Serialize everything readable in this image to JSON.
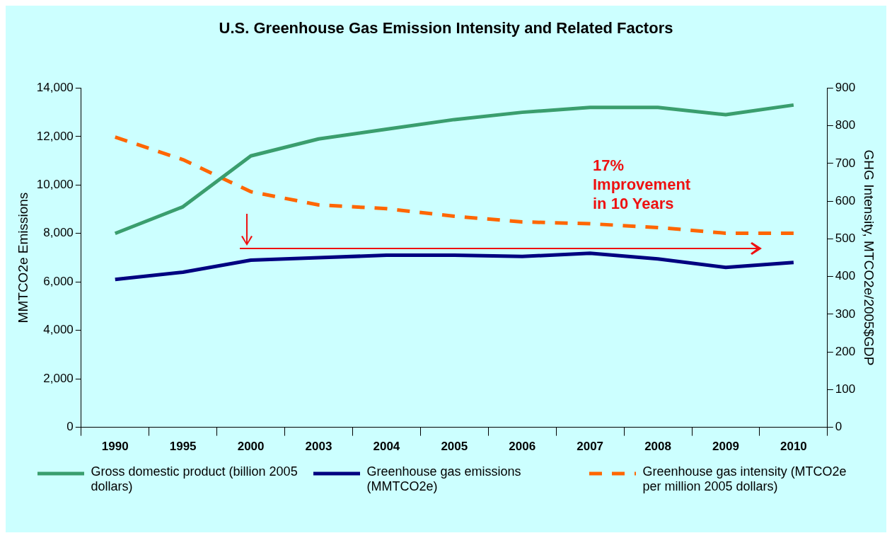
{
  "chart_data": {
    "type": "line",
    "title": "U.S. Greenhouse Gas Emission Intensity and Related Factors",
    "ylabel": "MMTCO2e Emissions",
    "y2label": "GHG Intensity, MTCO2e/2005$GDP",
    "categories": [
      "1990",
      "1995",
      "2000",
      "2003",
      "2004",
      "2005",
      "2006",
      "2007",
      "2008",
      "2009",
      "2010"
    ],
    "series": [
      {
        "name": "Gross domestic product (billion 2005 dollars)",
        "color": "#3a9e6e",
        "line_style": "solid",
        "values": [
          8000,
          9100,
          11200,
          11900,
          12300,
          12700,
          13000,
          13200,
          13200,
          12900,
          13300
        ]
      },
      {
        "name": "Greenhouse gas emissions (MMTCO2e)",
        "color": "#000080",
        "line_style": "solid",
        "values": [
          6100,
          6400,
          6900,
          7000,
          7100,
          7100,
          7050,
          7180,
          6950,
          6600,
          6800
        ]
      },
      {
        "name": "Greenhouse gas intensity (MTCO2e per million 2005 dollars)",
        "color": "#ff6600",
        "line_style": "dashed",
        "axis": "y2",
        "values": [
          770,
          710,
          625,
          590,
          580,
          560,
          545,
          540,
          530,
          515,
          515
        ]
      }
    ],
    "ylim": [
      0,
      14000
    ],
    "yticks": [
      0,
      {
        "value": 2000,
        "label": "2,000"
      },
      {
        "value": 4000,
        "label": "4,000"
      },
      {
        "value": 6000,
        "label": "6,000"
      },
      {
        "value": 8000,
        "label": "8,000"
      },
      {
        "value": 10000,
        "label": "10,000"
      },
      {
        "value": 12000,
        "label": "12,000"
      },
      {
        "value": 14000,
        "label": "14,000"
      }
    ],
    "y2lim": [
      0,
      900
    ],
    "y2ticks": [
      0,
      100,
      200,
      300,
      400,
      500,
      600,
      700,
      800,
      900
    ],
    "annotations": [
      "17% Improvement in 10 Years"
    ],
    "grid": false,
    "legend": "bottom",
    "marker": "none"
  }
}
